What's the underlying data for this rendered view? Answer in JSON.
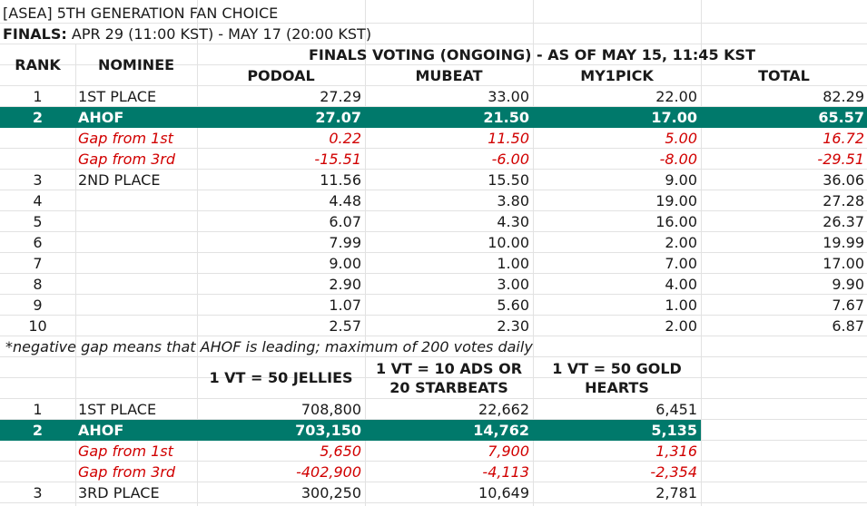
{
  "title": "[ASEA] 5TH GENERATION FAN CHOICE",
  "finals": {
    "label": "FINALS:",
    "period": " APR 29 (11:00 KST) - MAY 17 (20:00 KST)"
  },
  "header": {
    "rank": "RANK",
    "nominee": "NOMINEE",
    "voting": "FINALS VOTING (ONGOING) - AS OF MAY 15, 11:45 KST",
    "podoal": "PODOAL",
    "mubeat": "MUBEAT",
    "my1pick": "MY1PICK",
    "total": "TOTAL"
  },
  "rows": [
    {
      "rank": "1",
      "nominee": "1ST PLACE",
      "podoal": "27.29",
      "mubeat": "33.00",
      "my1pick": "22.00",
      "total": "82.29"
    },
    {
      "rank": "2",
      "nominee": "AHOF",
      "podoal": "27.07",
      "mubeat": "21.50",
      "my1pick": "17.00",
      "total": "65.57"
    },
    {
      "rank": "",
      "nominee": "Gap from 1st",
      "podoal": "0.22",
      "mubeat": "11.50",
      "my1pick": "5.00",
      "total": "16.72"
    },
    {
      "rank": "",
      "nominee": "Gap from 3rd",
      "podoal": "-15.51",
      "mubeat": "-6.00",
      "my1pick": "-8.00",
      "total": "-29.51"
    },
    {
      "rank": "3",
      "nominee": "2ND PLACE",
      "podoal": "11.56",
      "mubeat": "15.50",
      "my1pick": "9.00",
      "total": "36.06"
    },
    {
      "rank": "4",
      "nominee": "",
      "podoal": "4.48",
      "mubeat": "3.80",
      "my1pick": "19.00",
      "total": "27.28"
    },
    {
      "rank": "5",
      "nominee": "",
      "podoal": "6.07",
      "mubeat": "4.30",
      "my1pick": "16.00",
      "total": "26.37"
    },
    {
      "rank": "6",
      "nominee": "",
      "podoal": "7.99",
      "mubeat": "10.00",
      "my1pick": "2.00",
      "total": "19.99"
    },
    {
      "rank": "7",
      "nominee": "",
      "podoal": "9.00",
      "mubeat": "1.00",
      "my1pick": "7.00",
      "total": "17.00"
    },
    {
      "rank": "8",
      "nominee": "",
      "podoal": "2.90",
      "mubeat": "3.00",
      "my1pick": "4.00",
      "total": "9.90"
    },
    {
      "rank": "9",
      "nominee": "",
      "podoal": "1.07",
      "mubeat": "5.60",
      "my1pick": "1.00",
      "total": "7.67"
    },
    {
      "rank": "10",
      "nominee": "",
      "podoal": "2.57",
      "mubeat": "2.30",
      "my1pick": "2.00",
      "total": "6.87"
    }
  ],
  "note": "*negative gap means that AHOF is leading; maximum of 200 votes daily",
  "header2": {
    "podoal": "1 VT = 50 JELLIES",
    "mubeat_l1": "1 VT = 10 ADS OR",
    "mubeat_l2": "20 STARBEATS",
    "my1pick_l1": "1 VT = 50 GOLD",
    "my1pick_l2": "HEARTS"
  },
  "rows2": [
    {
      "rank": "1",
      "nominee": "1ST PLACE",
      "podoal": "708,800",
      "mubeat": "22,662",
      "my1pick": "6,451"
    },
    {
      "rank": "2",
      "nominee": "AHOF",
      "podoal": "703,150",
      "mubeat": "14,762",
      "my1pick": "5,135"
    },
    {
      "rank": "",
      "nominee": "Gap from 1st",
      "podoal": "5,650",
      "mubeat": "7,900",
      "my1pick": "1,316"
    },
    {
      "rank": "",
      "nominee": "Gap from 3rd",
      "podoal": "-402,900",
      "mubeat": "-4,113",
      "my1pick": "-2,354"
    },
    {
      "rank": "3",
      "nominee": "3RD PLACE",
      "podoal": "300,250",
      "mubeat": "10,649",
      "my1pick": "2,781"
    }
  ],
  "colors": {
    "highlight": "#00796b",
    "gap_text": "#d10000",
    "grid": "#e2e2e2"
  }
}
